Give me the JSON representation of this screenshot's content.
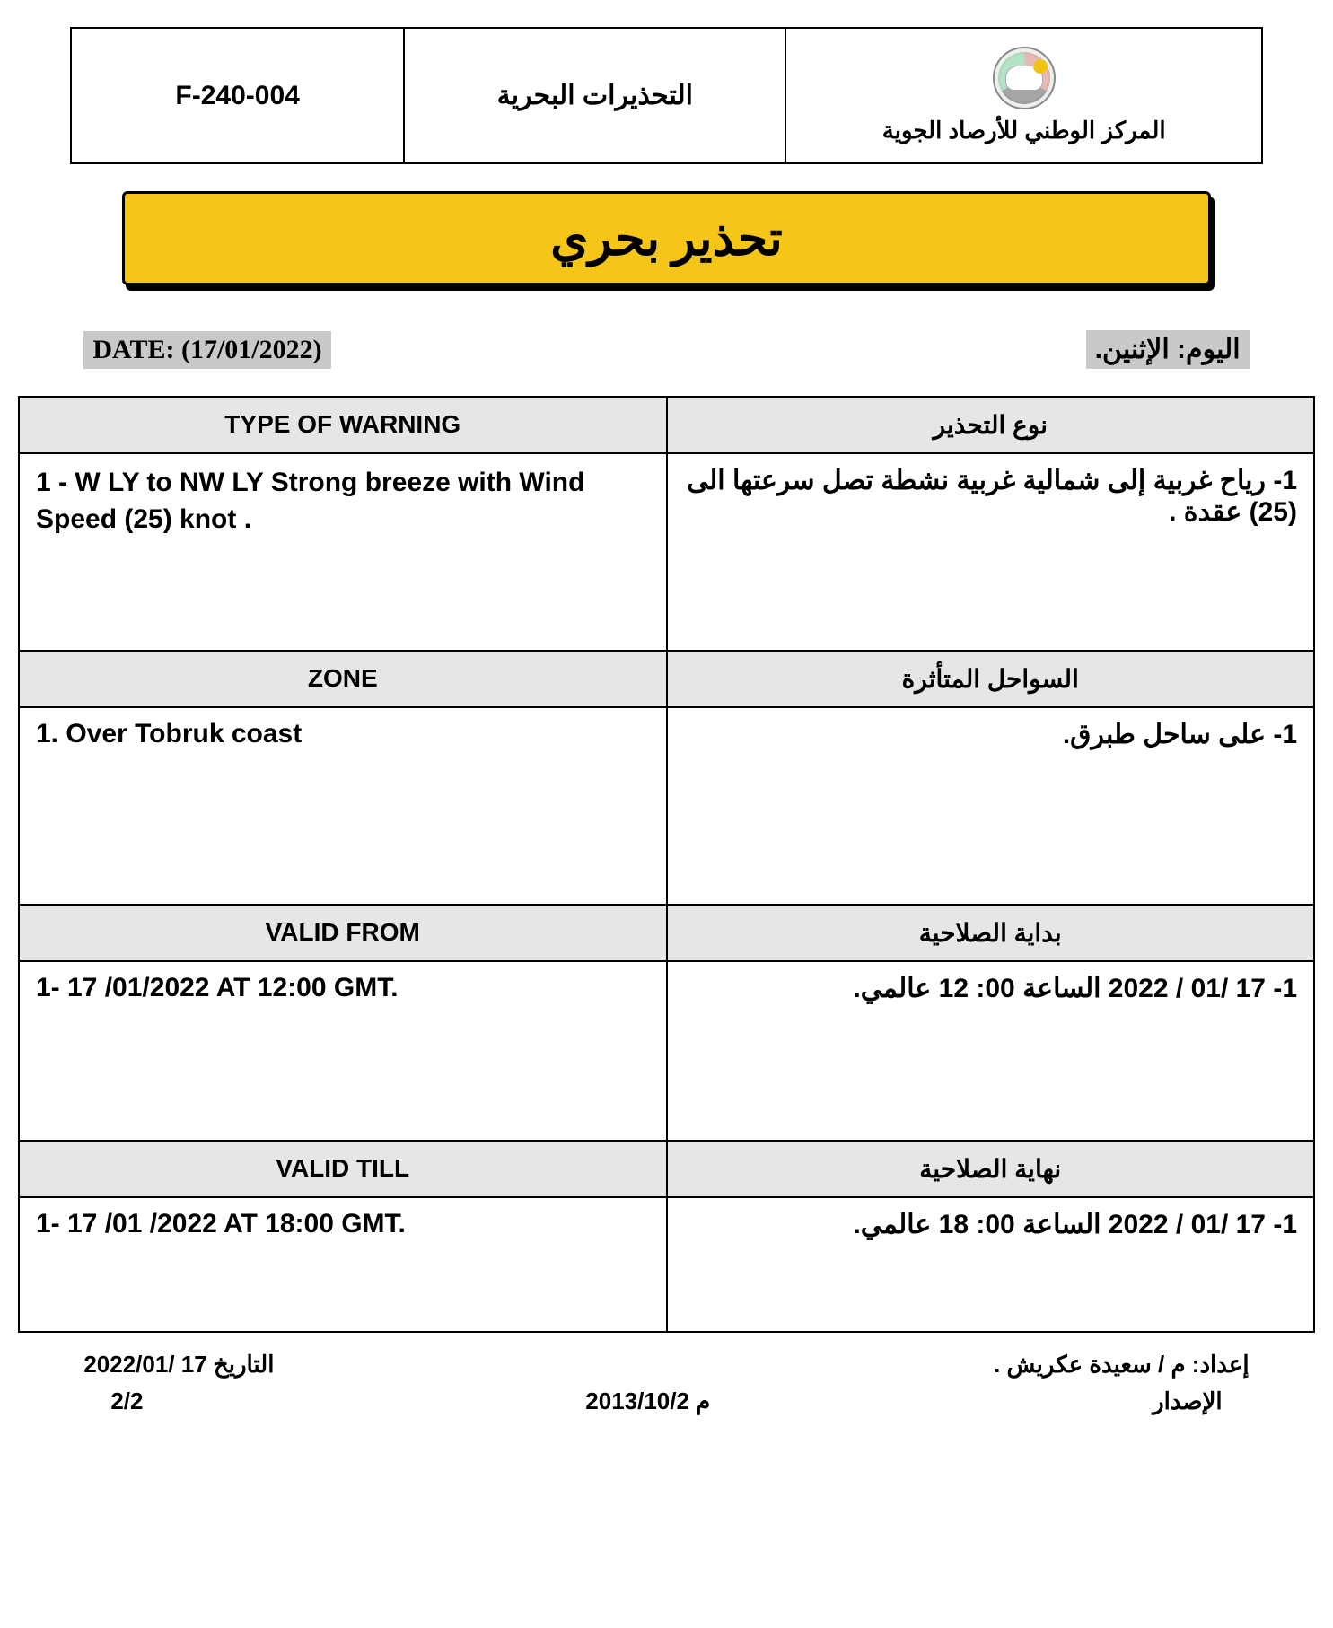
{
  "header": {
    "form_code": "F-240-004",
    "title_ar": "التحذيرات البحرية",
    "org_ar": "المركز الوطني للأرصاد الجوية"
  },
  "banner": {
    "title_ar": "تحذير بحري",
    "bg_color": "#f5c518"
  },
  "date_row": {
    "date_label": "DATE: (17/01/2022)",
    "day_ar": "اليوم: الإثنين."
  },
  "table": {
    "rows": [
      {
        "header_en": "TYPE OF WARNING",
        "header_ar": "نوع التحذير",
        "content_en": "1 -  W LY to NW LY Strong breeze with Wind Speed (25) knot .",
        "content_ar": "1- رياح غربية إلى  شمالية غربية نشطة تصل سرعتها الى (25) عقدة ."
      },
      {
        "header_en": "ZONE",
        "header_ar": "السواحل المتأثرة",
        "content_en": "1. Over Tobruk coast",
        "content_ar": "1- على ساحل طبرق."
      },
      {
        "header_en": "VALID FROM",
        "header_ar": "بداية الصلاحية",
        "content_en": "1- 17 /01/2022 AT 12:00 GMT.",
        "content_ar": "1- 17 /01 / 2022 الساعة 00: 12 عالمي."
      },
      {
        "header_en": "VALID TILL",
        "header_ar": "نهاية الصلاحية",
        "content_en": "1- 17 /01 /2022 AT 18:00 GMT.",
        "content_ar": "1-   17 /01 / 2022 الساعة 00: 18 عالمي."
      }
    ]
  },
  "footer": {
    "date_ar": "التاريخ 17 /2022/01",
    "prepared_by_ar": "إعداد: م / سعيدة عكريش .",
    "page": "2/2",
    "issue_date": "2013/10/2 م",
    "issue_label_ar": "الإصدار"
  }
}
